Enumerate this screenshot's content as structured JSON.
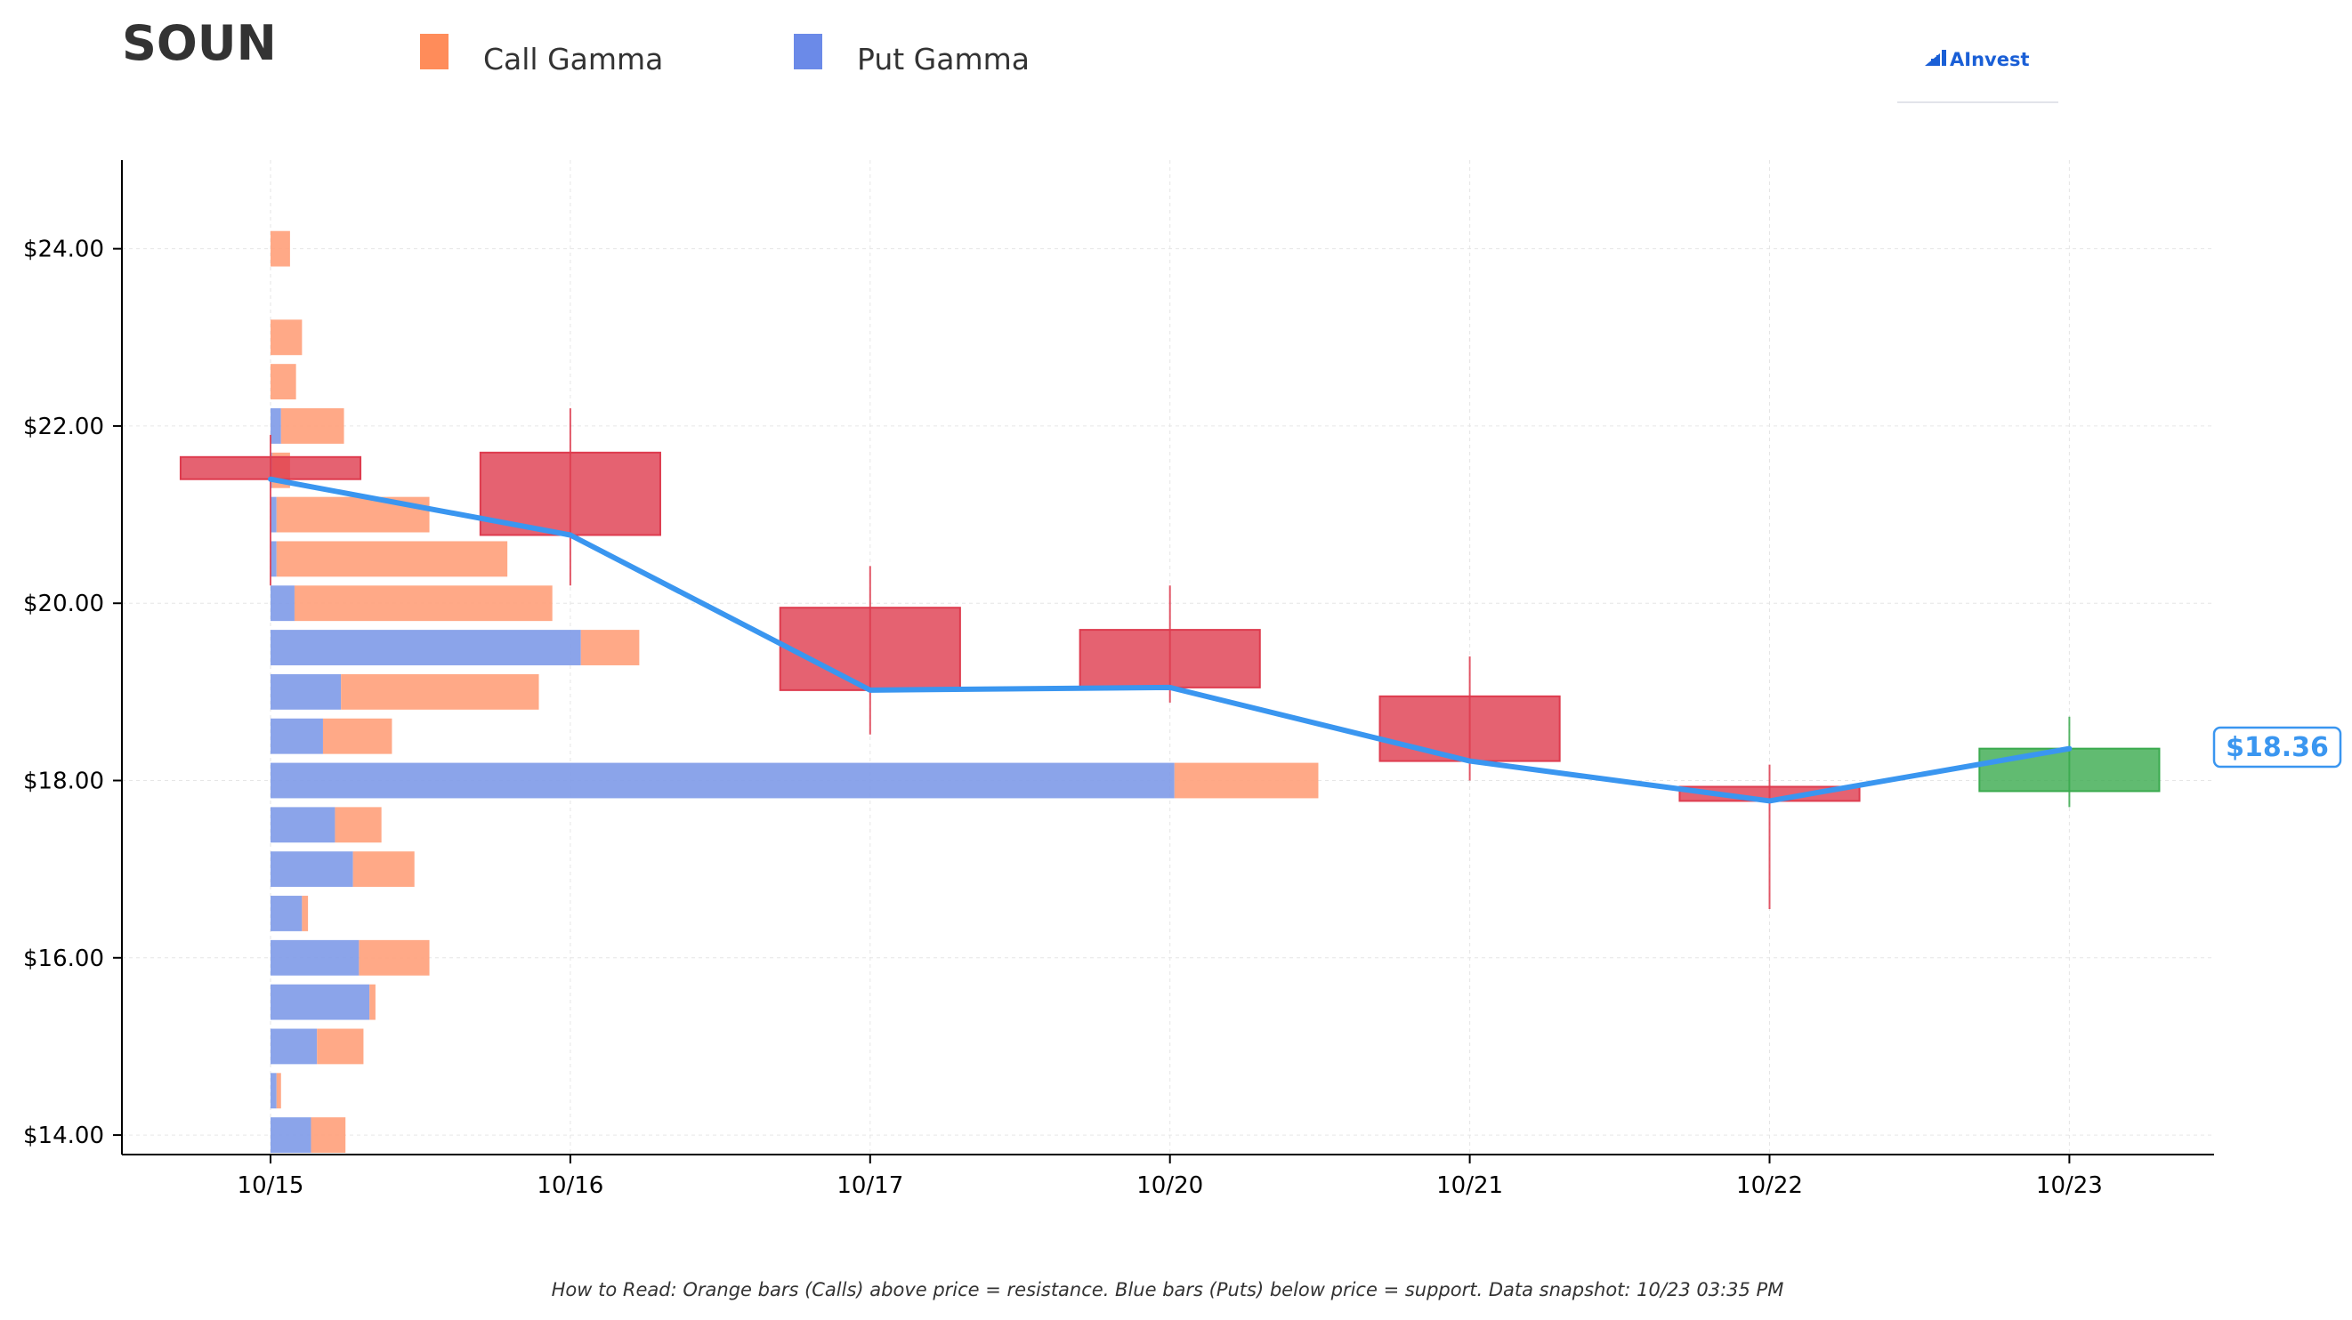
{
  "ticker": "SOUN",
  "legend": [
    {
      "label": "Call Gamma",
      "color": "#ff8c5a"
    },
    {
      "label": "Put Gamma",
      "color": "#6b8ae8"
    }
  ],
  "logo": {
    "text": "AInvest",
    "color": "#1a5fd6",
    "icon": "bar-chart-logo-icon"
  },
  "footnote": "How to Read: Orange bars (Calls) above price = resistance. Blue bars (Puts) below price = support. Data snapshot: 10/23 03:35 PM",
  "colors": {
    "up": "#3aaa4e",
    "down": "#de3b4e",
    "close_line": "#3a96f0",
    "call_bar": "#ffa07a",
    "put_bar": "#7e9ae8"
  },
  "chart_data": {
    "type": "candlestick",
    "title": "SOUN",
    "categories": [
      "10/15",
      "10/16",
      "10/17",
      "10/20",
      "10/21",
      "10/22",
      "10/23"
    ],
    "ohlc": [
      {
        "date": "10/15",
        "open": 21.65,
        "high": 21.9,
        "low": 20.2,
        "close": 21.4
      },
      {
        "date": "10/16",
        "open": 21.7,
        "high": 22.2,
        "low": 20.2,
        "close": 20.77
      },
      {
        "date": "10/17",
        "open": 19.95,
        "high": 20.42,
        "low": 18.52,
        "close": 19.02
      },
      {
        "date": "10/20",
        "open": 19.7,
        "high": 20.2,
        "low": 18.88,
        "close": 19.05
      },
      {
        "date": "10/21",
        "open": 18.95,
        "high": 19.4,
        "low": 18.0,
        "close": 18.22
      },
      {
        "date": "10/22",
        "open": 17.93,
        "high": 18.18,
        "low": 16.55,
        "close": 17.77
      },
      {
        "date": "10/23",
        "open": 17.88,
        "high": 18.72,
        "low": 17.7,
        "close": 18.36
      }
    ],
    "close_line": [
      21.4,
      20.77,
      19.02,
      19.05,
      18.22,
      17.77,
      18.36
    ],
    "current_price": {
      "value": 18.36,
      "label": "$18.36"
    },
    "gamma_profile": {
      "note": "horizontal bars drawn from the 10/15 axis; lengths in x-axis day units",
      "levels": [
        {
          "strike": 24.0,
          "put": 0.0,
          "call": 0.065
        },
        {
          "strike": 23.0,
          "put": 0.0,
          "call": 0.105
        },
        {
          "strike": 22.5,
          "put": 0.0,
          "call": 0.085
        },
        {
          "strike": 22.0,
          "put": 0.035,
          "call": 0.21
        },
        {
          "strike": 21.5,
          "put": 0.005,
          "call": 0.06
        },
        {
          "strike": 21.0,
          "put": 0.02,
          "call": 0.51
        },
        {
          "strike": 20.5,
          "put": 0.02,
          "call": 0.77
        },
        {
          "strike": 20.0,
          "put": 0.08,
          "call": 0.86
        },
        {
          "strike": 19.5,
          "put": 1.035,
          "call": 0.195
        },
        {
          "strike": 19.0,
          "put": 0.235,
          "call": 0.66
        },
        {
          "strike": 18.5,
          "put": 0.175,
          "call": 0.23
        },
        {
          "strike": 18.0,
          "put": 3.015,
          "call": 0.48
        },
        {
          "strike": 17.5,
          "put": 0.215,
          "call": 0.155
        },
        {
          "strike": 17.0,
          "put": 0.275,
          "call": 0.205
        },
        {
          "strike": 16.5,
          "put": 0.105,
          "call": 0.02
        },
        {
          "strike": 16.0,
          "put": 0.295,
          "call": 0.235
        },
        {
          "strike": 15.5,
          "put": 0.33,
          "call": 0.02
        },
        {
          "strike": 15.0,
          "put": 0.155,
          "call": 0.155
        },
        {
          "strike": 14.5,
          "put": 0.02,
          "call": 0.015
        },
        {
          "strike": 14.0,
          "put": 0.135,
          "call": 0.115
        }
      ]
    },
    "yticks": [
      "$14.00",
      "$16.00",
      "$18.00",
      "$20.00",
      "$22.00",
      "$24.00"
    ],
    "ytick_values": [
      14,
      16,
      18,
      20,
      22,
      24
    ],
    "ylim": [
      13.78,
      25.0
    ],
    "xlabel": "",
    "ylabel": "",
    "grid": true,
    "legend_position": "top"
  }
}
